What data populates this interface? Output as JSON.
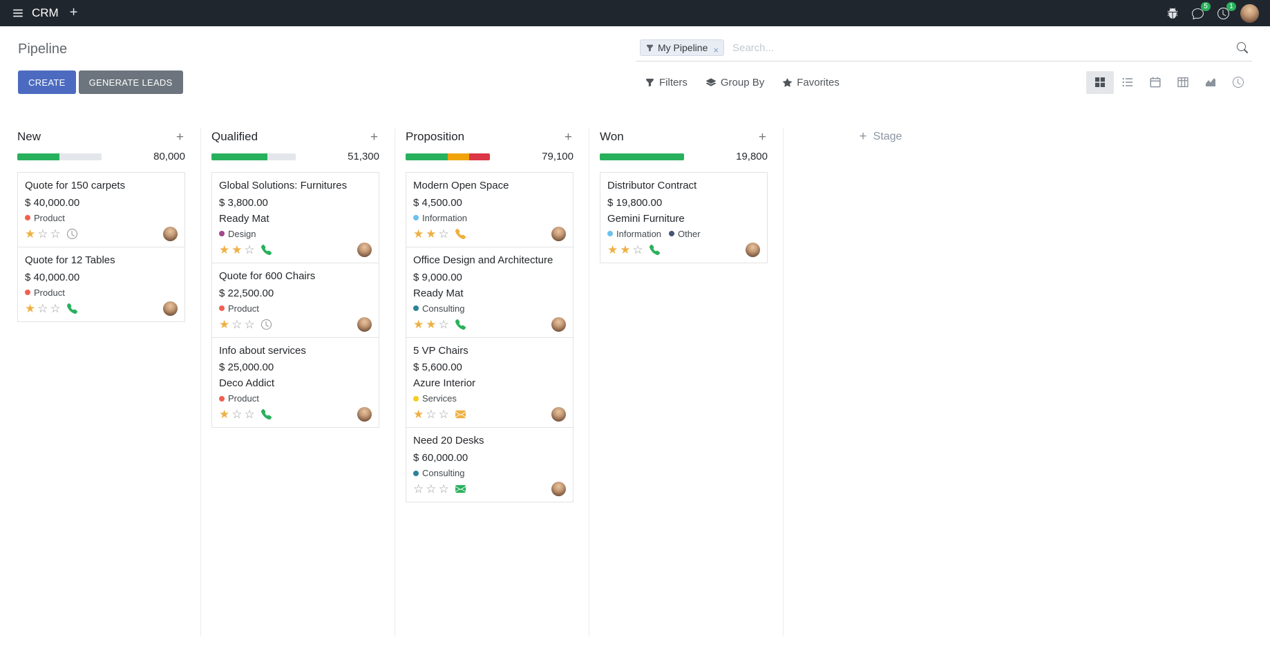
{
  "colors": {
    "topbar_bg": "#20262d",
    "primary": "#4c6bc0",
    "secondary": "#6c757d",
    "success": "#28b15c",
    "warning": "#f0a30a",
    "danger": "#dc3545",
    "star": "#eeb044",
    "star_empty": "#999999",
    "muted_icon": "#8a8a8a",
    "progress_track": "#e3e6ea"
  },
  "topbar": {
    "app_name": "CRM",
    "plus_label": "+",
    "messages_badge": "5",
    "activities_badge": "1"
  },
  "control_panel": {
    "title": "Pipeline",
    "create_label": "CREATE",
    "generate_leads_label": "GENERATE LEADS",
    "filters_label": "Filters",
    "group_by_label": "Group By",
    "favorites_label": "Favorites",
    "search": {
      "facet_label": "My Pipeline",
      "remove_label": "×",
      "placeholder": "Search..."
    },
    "active_view": "kanban",
    "view_switcher": [
      "kanban",
      "list",
      "calendar",
      "pivot",
      "graph",
      "activity"
    ]
  },
  "kanban": {
    "quick_add_label": "+",
    "add_stage_plus": "+",
    "add_stage_label": "Stage",
    "star_filled_glyph": "★",
    "star_empty_glyph": "☆",
    "columns": [
      {
        "name": "New",
        "total": "80,000",
        "progress": [
          {
            "color": "#28b15c",
            "pct": 50
          }
        ],
        "cards": [
          {
            "title": "Quote for 150 carpets",
            "amount": "$ 40,000.00",
            "partner": "",
            "tags": [
              {
                "label": "Product",
                "color": "#f06050"
              }
            ],
            "stars": 1,
            "activity": {
              "type": "clock",
              "color": "#8a8a8a"
            }
          },
          {
            "title": "Quote for 12 Tables",
            "amount": "$ 40,000.00",
            "partner": "",
            "tags": [
              {
                "label": "Product",
                "color": "#f06050"
              }
            ],
            "stars": 1,
            "activity": {
              "type": "phone",
              "color": "#28b15c"
            }
          }
        ]
      },
      {
        "name": "Qualified",
        "total": "51,300",
        "progress": [
          {
            "color": "#28b15c",
            "pct": 66
          }
        ],
        "cards": [
          {
            "title": "Global Solutions: Furnitures",
            "amount": "$ 3,800.00",
            "partner": "Ready Mat",
            "tags": [
              {
                "label": "Design",
                "color": "#a24689"
              }
            ],
            "stars": 2,
            "activity": {
              "type": "phone",
              "color": "#28b15c"
            }
          },
          {
            "title": "Quote for 600 Chairs",
            "amount": "$ 22,500.00",
            "partner": "",
            "tags": [
              {
                "label": "Product",
                "color": "#f06050"
              }
            ],
            "stars": 1,
            "activity": {
              "type": "clock",
              "color": "#8a8a8a"
            }
          },
          {
            "title": "Info about services",
            "amount": "$ 25,000.00",
            "partner": "Deco Addict",
            "tags": [
              {
                "label": "Product",
                "color": "#f06050"
              }
            ],
            "stars": 1,
            "activity": {
              "type": "phone",
              "color": "#28b15c"
            }
          }
        ]
      },
      {
        "name": "Proposition",
        "total": "79,100",
        "progress": [
          {
            "color": "#28b15c",
            "pct": 50
          },
          {
            "color": "#f0a30a",
            "pct": 25
          },
          {
            "color": "#dc3545",
            "pct": 25
          }
        ],
        "cards": [
          {
            "title": "Modern Open Space",
            "amount": "$ 4,500.00",
            "partner": "",
            "tags": [
              {
                "label": "Information",
                "color": "#6cc1ed"
              }
            ],
            "stars": 2,
            "activity": {
              "type": "phone",
              "color": "#efb041"
            }
          },
          {
            "title": "Office Design and Architecture",
            "amount": "$ 9,000.00",
            "partner": "Ready Mat",
            "tags": [
              {
                "label": "Consulting",
                "color": "#2c8397"
              }
            ],
            "stars": 2,
            "activity": {
              "type": "phone",
              "color": "#28b15c"
            }
          },
          {
            "title": "5 VP Chairs",
            "amount": "$ 5,600.00",
            "partner": "Azure Interior",
            "tags": [
              {
                "label": "Services",
                "color": "#f7cd1f"
              }
            ],
            "stars": 1,
            "activity": {
              "type": "envelope",
              "color": "#efb041"
            }
          },
          {
            "title": "Need 20 Desks",
            "amount": "$ 60,000.00",
            "partner": "",
            "tags": [
              {
                "label": "Consulting",
                "color": "#2c8397"
              }
            ],
            "stars": 0,
            "activity": {
              "type": "envelope",
              "color": "#28b15c"
            }
          }
        ]
      },
      {
        "name": "Won",
        "total": "19,800",
        "progress": [
          {
            "color": "#28b15c",
            "pct": 100
          }
        ],
        "cards": [
          {
            "title": "Distributor Contract",
            "amount": "$ 19,800.00",
            "partner": "Gemini Furniture",
            "tags": [
              {
                "label": "Information",
                "color": "#6cc1ed"
              },
              {
                "label": "Other",
                "color": "#475577"
              }
            ],
            "stars": 2,
            "activity": {
              "type": "phone",
              "color": "#28b15c"
            }
          }
        ]
      }
    ]
  }
}
